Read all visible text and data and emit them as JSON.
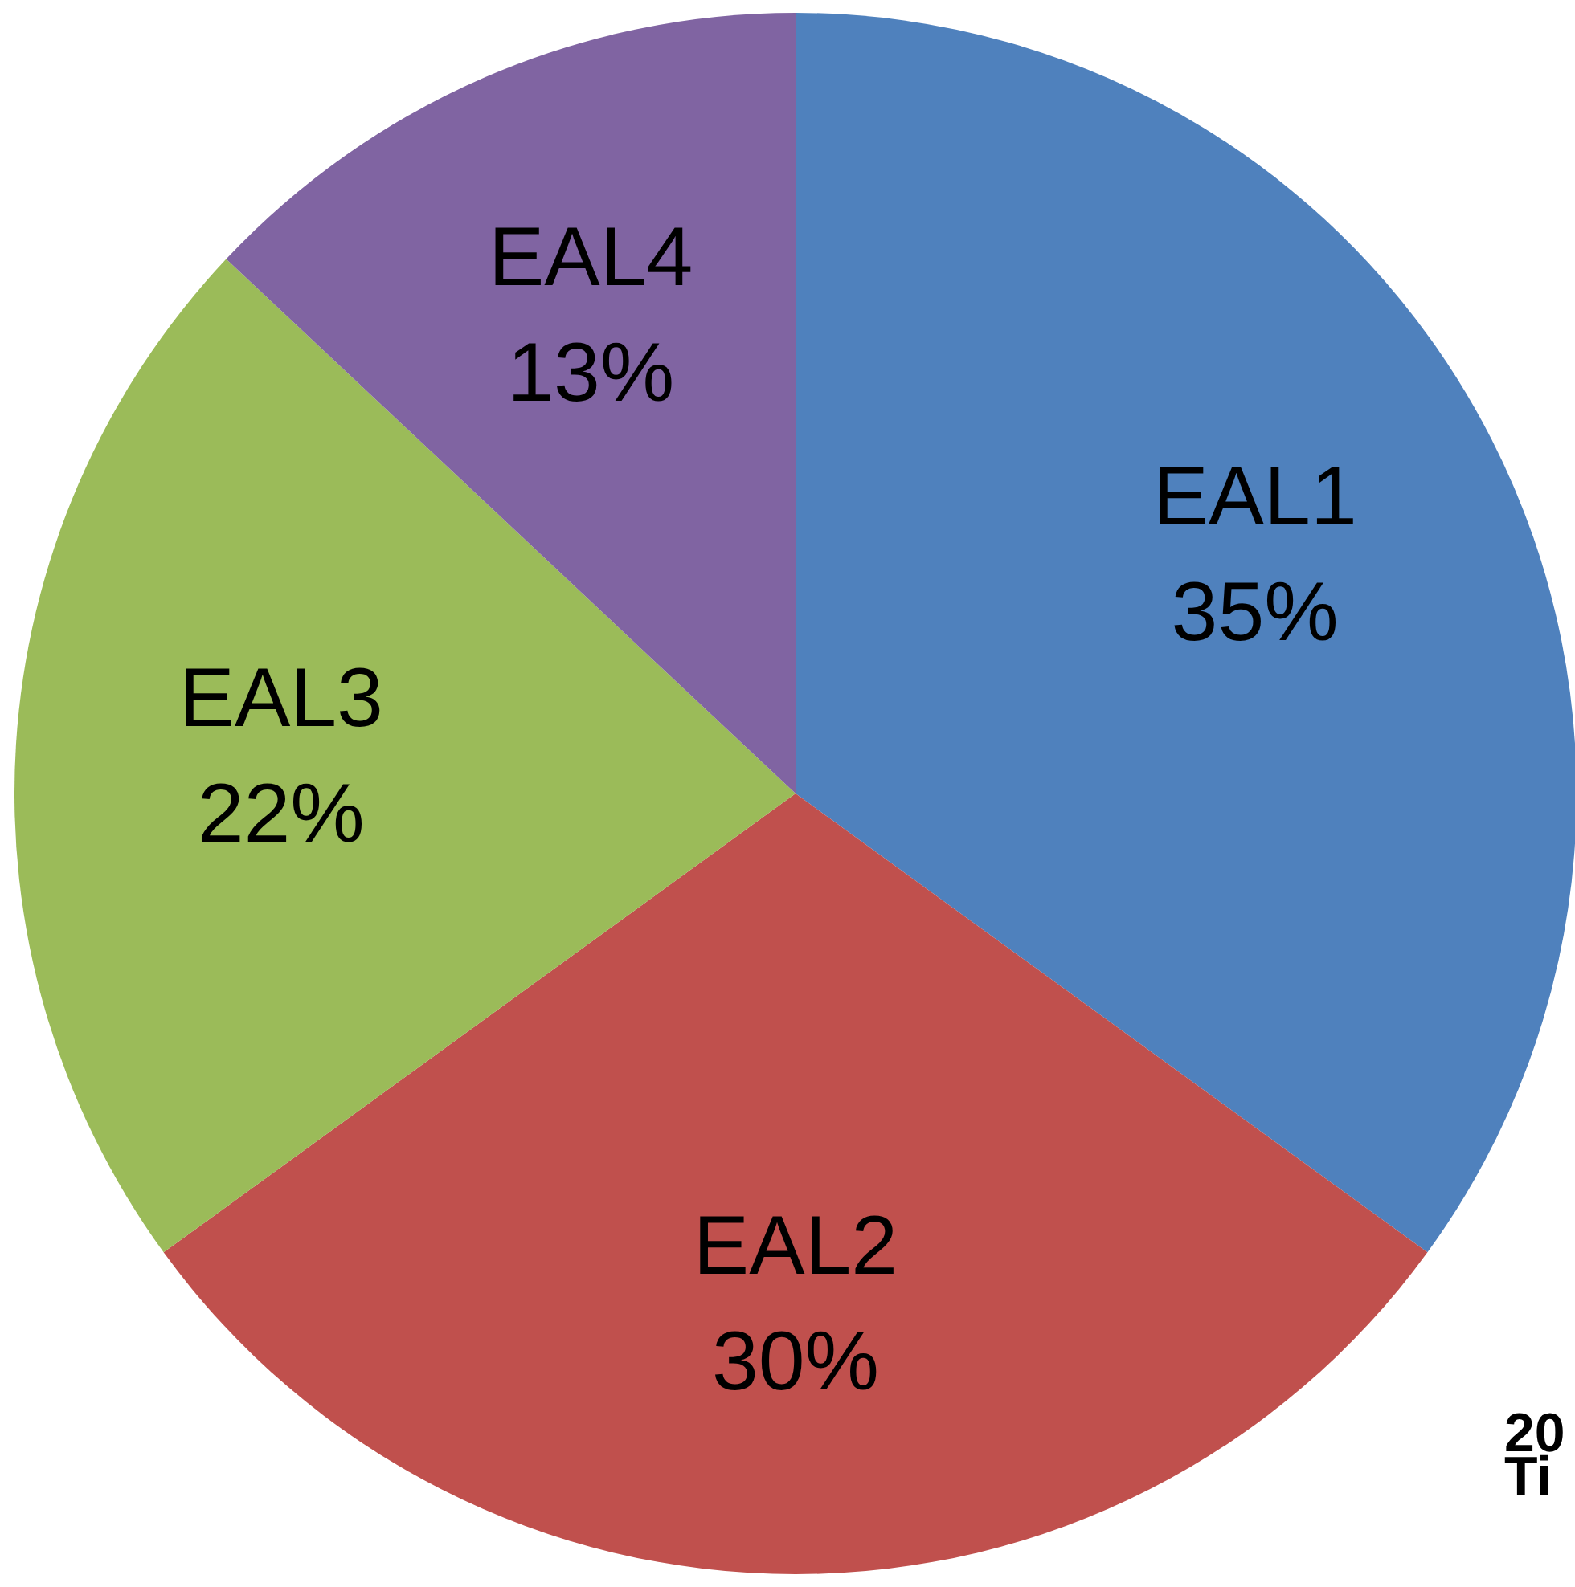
{
  "chart_data": {
    "type": "pie",
    "categories": [
      "EAL1",
      "EAL2",
      "EAL3",
      "EAL4"
    ],
    "values": [
      35,
      30,
      22,
      13
    ],
    "value_labels": [
      "35%",
      "30%",
      "22%",
      "13%"
    ],
    "colors": [
      "#4f81bd",
      "#c0504d",
      "#9bbb59",
      "#8064a2"
    ],
    "annotations": [
      "20",
      "Ti"
    ]
  }
}
